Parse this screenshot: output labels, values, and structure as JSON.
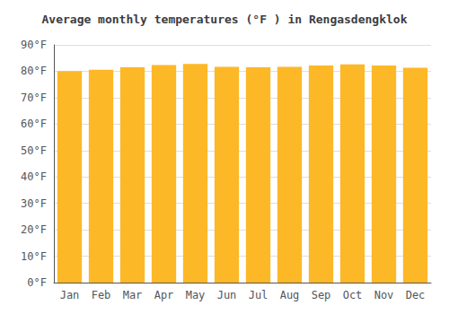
{
  "chart_data": {
    "type": "bar",
    "title": "Average monthly temperatures (°F ) in Rengasdengklok",
    "categories": [
      "Jan",
      "Feb",
      "Mar",
      "Apr",
      "May",
      "Jun",
      "Jul",
      "Aug",
      "Sep",
      "Oct",
      "Nov",
      "Dec"
    ],
    "values": [
      80.1,
      80.6,
      81.5,
      82.4,
      82.8,
      81.7,
      81.5,
      81.7,
      82.2,
      82.6,
      82.2,
      81.3
    ],
    "color": "#FDB827",
    "ylim": [
      0,
      90
    ],
    "yticks": [
      {
        "value": 0,
        "label": "0°F"
      },
      {
        "value": 10,
        "label": "10°F"
      },
      {
        "value": 20,
        "label": "20°F"
      },
      {
        "value": 30,
        "label": "30°F"
      },
      {
        "value": 40,
        "label": "40°F"
      },
      {
        "value": 50,
        "label": "50°F"
      },
      {
        "value": 60,
        "label": "60°F"
      },
      {
        "value": 70,
        "label": "70°F"
      },
      {
        "value": 80,
        "label": "80°F"
      },
      {
        "value": 90,
        "label": "90°F"
      }
    ],
    "grid": true
  }
}
